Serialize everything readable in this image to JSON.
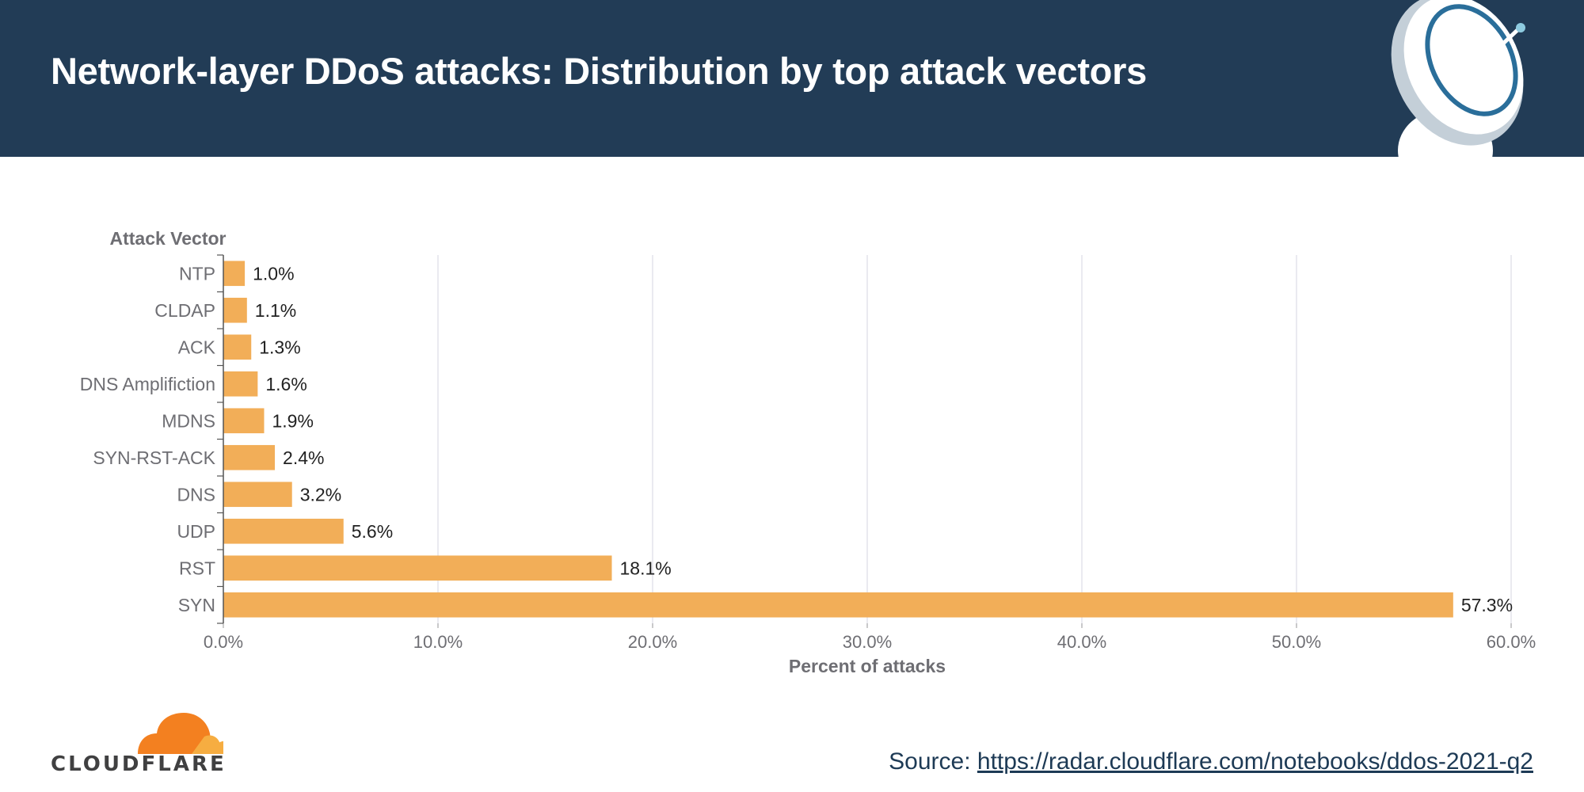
{
  "header": {
    "title": "Network-layer DDoS attacks: Distribution by top attack vectors"
  },
  "chart_data": {
    "type": "bar",
    "orientation": "horizontal",
    "ylabel": "Attack Vector",
    "xlabel": "Percent of attacks",
    "categories": [
      "NTP",
      "CLDAP",
      "ACK",
      "DNS Amplifiction",
      "MDNS",
      "SYN-RST-ACK",
      "DNS",
      "UDP",
      "RST",
      "SYN"
    ],
    "values": [
      1.0,
      1.1,
      1.3,
      1.6,
      1.9,
      2.4,
      3.2,
      5.6,
      18.1,
      57.3
    ],
    "data_labels": [
      "1.0%",
      "1.1%",
      "1.3%",
      "1.6%",
      "1.9%",
      "2.4%",
      "3.2%",
      "5.6%",
      "18.1%",
      "57.3%"
    ],
    "xlim": [
      0,
      60
    ],
    "xticks": [
      0,
      10,
      20,
      30,
      40,
      50,
      60
    ],
    "xtick_labels": [
      "0.0%",
      "10.0%",
      "20.0%",
      "30.0%",
      "40.0%",
      "50.0%",
      "60.0%"
    ],
    "grid": "vertical",
    "bar_color": "#f2ae58"
  },
  "footer": {
    "brand": "CLOUDFLARE",
    "source_label": "Source:",
    "source_link": "https://radar.cloudflare.com/notebooks/ddos-2021-q2"
  },
  "colors": {
    "header_bg": "#223c56",
    "logo_orange": "#f38020",
    "logo_light_orange": "#f6ad41"
  }
}
